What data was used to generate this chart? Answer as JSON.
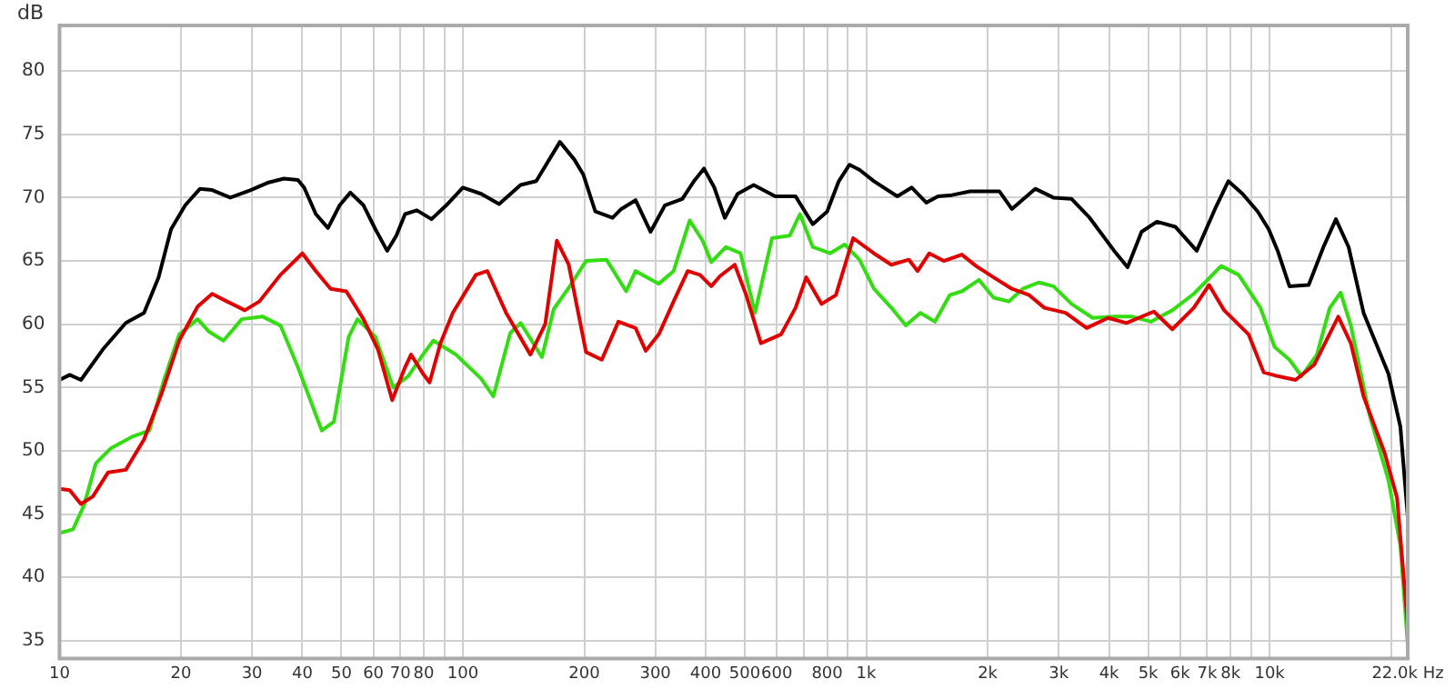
{
  "chart_data": {
    "type": "line",
    "ylabel": "dB",
    "log": "x",
    "grid": true,
    "legend": false,
    "xlim": [
      10,
      22000
    ],
    "ylim": [
      33.6,
      83.6
    ],
    "xticks": [
      10,
      20,
      30,
      40,
      50,
      60,
      70,
      80,
      {
        "value": 90,
        "label": null
      },
      100,
      200,
      300,
      400,
      500,
      600,
      {
        "value": 700,
        "label": null
      },
      800,
      {
        "value": 900,
        "label": null
      },
      {
        "value": 1000,
        "label": "1k"
      },
      {
        "value": 2000,
        "label": "2k"
      },
      {
        "value": 3000,
        "label": "3k"
      },
      {
        "value": 4000,
        "label": "4k"
      },
      {
        "value": 5000,
        "label": "5k"
      },
      {
        "value": 6000,
        "label": "6k"
      },
      {
        "value": 7000,
        "label": "7k"
      },
      {
        "value": 8000,
        "label": "8k"
      },
      {
        "value": 9000,
        "label": null
      },
      {
        "value": 10000,
        "label": "10k"
      },
      {
        "value": 20000,
        "label": null
      },
      {
        "value": 22000,
        "label": "22.0k Hz"
      }
    ],
    "yticks": [
      35,
      40,
      45,
      50,
      55,
      60,
      65,
      70,
      75,
      80
    ],
    "series": [
      {
        "color": "#000000",
        "x": [
          10,
          10.6,
          11.3,
          12.8,
          14.6,
          16.2,
          17.6,
          18.9,
          20.5,
          22.3,
          23.9,
          26.5,
          29.8,
          33,
          36,
          39,
          40.4,
          43.2,
          46.3,
          49.5,
          52.6,
          56.7,
          60.7,
          64.9,
          68.4,
          71.9,
          76.9,
          83.6,
          91,
          100,
          111,
          123,
          139,
          152,
          174,
          189,
          199,
          213,
          235,
          247,
          268,
          292,
          317,
          350,
          374,
          396,
          420,
          446,
          480,
          526,
          595,
          668,
          737,
          800,
          855,
          909,
          962,
          1045,
          1194,
          1297,
          1409,
          1506,
          1630,
          1811,
          2138,
          2296,
          2624,
          2911,
          3229,
          3582,
          4117,
          4446,
          4815,
          5257,
          5837,
          6597,
          7322,
          7903,
          8568,
          9345,
          9950,
          10500,
          11200,
          12500,
          13600,
          14600,
          15700,
          17100,
          19700,
          21100,
          22000
        ],
        "values": [
          55.6,
          56,
          55.6,
          58,
          60.1,
          60.9,
          63.7,
          67.5,
          69.4,
          70.7,
          70.6,
          70,
          70.6,
          71.2,
          71.5,
          71.4,
          70.8,
          68.7,
          67.6,
          69.4,
          70.4,
          69.4,
          67.5,
          65.8,
          67,
          68.7,
          69,
          68.3,
          69.4,
          70.8,
          70.3,
          69.5,
          71,
          71.3,
          74.4,
          73,
          71.8,
          68.9,
          68.4,
          69.1,
          69.8,
          67.3,
          69.4,
          69.9,
          71.3,
          72.3,
          70.8,
          68.4,
          70.3,
          71,
          70.1,
          70.1,
          67.9,
          68.9,
          71.3,
          72.6,
          72.2,
          71.3,
          70.1,
          70.8,
          69.6,
          70.1,
          70.2,
          70.5,
          70.5,
          69.1,
          70.7,
          70,
          69.9,
          68.4,
          65.8,
          64.5,
          67.3,
          68.1,
          67.7,
          65.8,
          69.1,
          71.3,
          70.3,
          68.9,
          67.5,
          65.7,
          63,
          63.1,
          66.1,
          68.3,
          66.1,
          60.9,
          56.1,
          51.9,
          44.8
        ]
      },
      {
        "color": "#e00000",
        "x": [
          10,
          10.6,
          11.3,
          12.1,
          13.2,
          14.6,
          16.2,
          17.9,
          19.8,
          22,
          23.9,
          26,
          28.8,
          31.3,
          35.3,
          40,
          43.2,
          47,
          51.4,
          56.7,
          61.6,
          66.8,
          71.9,
          74.4,
          79.6,
          82.7,
          88,
          94.4,
          107.7,
          115,
          128,
          147,
          160,
          171,
          183,
          202,
          221,
          243,
          268,
          284,
          306,
          333,
          361,
          387,
          413,
          434,
          472,
          504,
          548,
          615,
          668,
          710,
          775,
          841,
          928,
          1045,
          1154,
          1276,
          1341,
          1433,
          1557,
          1726,
          1872,
          2069,
          2296,
          2536,
          2764,
          3120,
          3520,
          3978,
          4417,
          5165,
          5738,
          6488,
          7077,
          7715,
          8869,
          9667,
          10470,
          11600,
          12900,
          14800,
          15900,
          17100,
          19300,
          20700,
          22000
        ],
        "values": [
          47,
          46.9,
          45.8,
          46.4,
          48.3,
          48.5,
          50.9,
          54.5,
          58.7,
          61.4,
          62.4,
          61.8,
          61.1,
          61.8,
          63.9,
          65.6,
          64.2,
          62.8,
          62.6,
          60.4,
          58,
          54,
          56.6,
          57.6,
          56.1,
          55.4,
          58.5,
          60.9,
          63.9,
          64.2,
          60.9,
          57.6,
          60,
          66.6,
          64.7,
          57.8,
          57.2,
          60.2,
          59.7,
          57.9,
          59.2,
          61.8,
          64.2,
          63.9,
          63,
          63.8,
          64.7,
          62.3,
          58.5,
          59.2,
          61.3,
          63.7,
          61.6,
          62.3,
          66.8,
          65.6,
          64.7,
          65.1,
          64.2,
          65.6,
          65,
          65.5,
          64.6,
          63.7,
          62.8,
          62.3,
          61.3,
          60.9,
          59.7,
          60.5,
          60.1,
          61,
          59.6,
          61.3,
          63.1,
          61.1,
          59.2,
          56.2,
          55.9,
          55.6,
          56.8,
          60.6,
          58.5,
          54.3,
          49.8,
          46.3,
          36.3
        ]
      },
      {
        "color": "#33dd11",
        "x": [
          10,
          10.8,
          11.5,
          12.3,
          13.4,
          15.1,
          16.7,
          18.2,
          19.8,
          22,
          23.5,
          25.5,
          28.3,
          31.9,
          35.3,
          39,
          44.7,
          47.9,
          52.1,
          54.8,
          60.7,
          67.2,
          73.2,
          79.6,
          84.5,
          96.1,
          111,
          119,
          131,
          139,
          157,
          168,
          185,
          202,
          227,
          254,
          268,
          306,
          333,
          365,
          393,
          413,
          449,
          488,
          530,
          584,
          646,
          685,
          737,
          813,
          884,
          962,
          1045,
          1154,
          1254,
          1362,
          1480,
          1610,
          1726,
          1904,
          2069,
          2257,
          2444,
          2678,
          2911,
          3229,
          3643,
          4117,
          4564,
          5078,
          5738,
          6488,
          7582,
          8380,
          9491,
          10290,
          11200,
          12000,
          13100,
          14100,
          15000,
          15900,
          17700,
          19700,
          21100,
          22000
        ],
        "values": [
          43.5,
          43.8,
          45.7,
          49,
          50.2,
          51.1,
          51.6,
          55.7,
          59.2,
          60.4,
          59.4,
          58.7,
          60.4,
          60.6,
          59.9,
          56.6,
          51.6,
          52.3,
          59,
          60.4,
          59,
          55,
          55.9,
          57.6,
          58.7,
          57.6,
          55.7,
          54.3,
          59.3,
          60.1,
          57.4,
          61.2,
          63.1,
          65,
          65.1,
          62.6,
          64.2,
          63.2,
          64.2,
          68.2,
          66.6,
          64.9,
          66.1,
          65.6,
          60.9,
          66.8,
          67,
          68.7,
          66.1,
          65.6,
          66.3,
          65.1,
          62.8,
          61.3,
          59.9,
          60.9,
          60.2,
          62.3,
          62.6,
          63.5,
          62.1,
          61.8,
          62.8,
          63.3,
          63,
          61.6,
          60.5,
          60.6,
          60.6,
          60.2,
          61.1,
          62.4,
          64.6,
          63.9,
          61.3,
          58.2,
          57.2,
          55.9,
          57.6,
          61.3,
          62.5,
          59.9,
          52.8,
          47.7,
          42.5,
          34.7
        ]
      }
    ]
  }
}
